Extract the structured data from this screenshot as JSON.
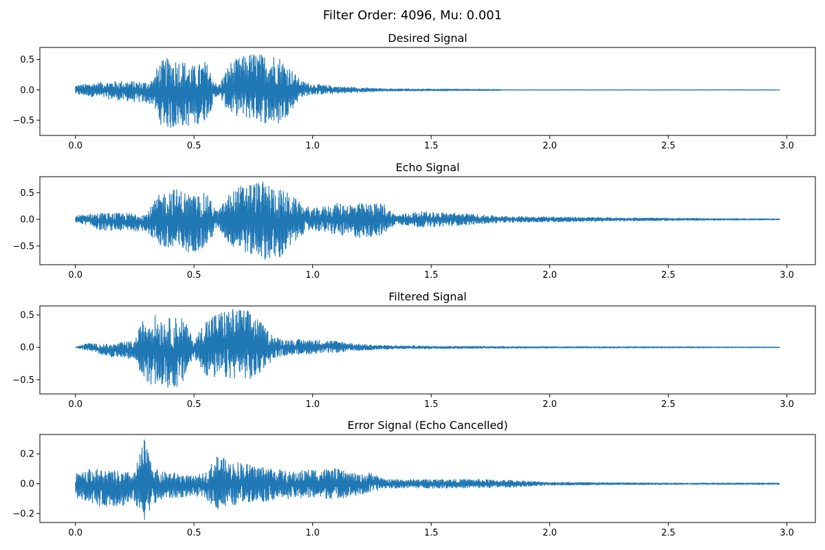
{
  "figure": {
    "title": "Filter Order: 4096, Mu: 0.001"
  },
  "style": {
    "line_color": "#1f77b4",
    "axes_color": "#000000"
  },
  "chart_data": [
    {
      "type": "line",
      "title": "Desired Signal",
      "xlim": [
        -0.15,
        3.12
      ],
      "ylim": [
        -0.75,
        0.7
      ],
      "xticks": [
        0.0,
        0.5,
        1.0,
        1.5,
        2.0,
        2.5,
        3.0
      ],
      "xtick_labels": [
        "0.0",
        "0.5",
        "1.0",
        "1.5",
        "2.0",
        "2.5",
        "3.0"
      ],
      "yticks": [
        -0.5,
        0.0,
        0.5
      ],
      "ytick_labels": [
        "−0.5",
        "0.0",
        "0.5"
      ],
      "grid": false,
      "series": [
        {
          "values": [],
          "envelope": {
            "x": [
              0.0,
              0.05,
              0.1,
              0.2,
              0.3,
              0.33,
              0.35,
              0.4,
              0.45,
              0.5,
              0.55,
              0.6,
              0.65,
              0.7,
              0.75,
              0.8,
              0.85,
              0.9,
              0.95,
              1.0,
              1.1,
              1.2,
              1.3,
              1.5,
              1.78,
              1.8,
              2.0,
              2.5,
              2.97
            ],
            "upper": [
              0.08,
              0.1,
              0.13,
              0.15,
              0.14,
              0.2,
              0.45,
              0.55,
              0.5,
              0.4,
              0.48,
              0.05,
              0.45,
              0.55,
              0.62,
              0.58,
              0.6,
              0.4,
              0.15,
              0.1,
              0.06,
              0.04,
              0.02,
              0.015,
              0.01,
              0.003,
              0.003,
              0.003,
              0.003
            ],
            "lower": [
              -0.08,
              -0.1,
              -0.13,
              -0.18,
              -0.22,
              -0.25,
              -0.55,
              -0.65,
              -0.6,
              -0.6,
              -0.5,
              -0.08,
              -0.4,
              -0.45,
              -0.5,
              -0.55,
              -0.6,
              -0.4,
              -0.12,
              -0.08,
              -0.06,
              -0.04,
              -0.02,
              -0.015,
              -0.01,
              -0.003,
              -0.003,
              -0.003,
              -0.003
            ]
          }
        }
      ]
    },
    {
      "type": "line",
      "title": "Echo Signal",
      "xlim": [
        -0.15,
        3.12
      ],
      "ylim": [
        -0.85,
        0.8
      ],
      "xticks": [
        0.0,
        0.5,
        1.0,
        1.5,
        2.0,
        2.5,
        3.0
      ],
      "xtick_labels": [
        "0.0",
        "0.5",
        "1.0",
        "1.5",
        "2.0",
        "2.5",
        "3.0"
      ],
      "yticks": [
        -0.5,
        0.0,
        0.5
      ],
      "ytick_labels": [
        "−0.5",
        "0.0",
        "0.5"
      ],
      "grid": false,
      "series": [
        {
          "values": [],
          "envelope": {
            "x": [
              0.0,
              0.05,
              0.1,
              0.2,
              0.3,
              0.35,
              0.4,
              0.45,
              0.5,
              0.55,
              0.6,
              0.65,
              0.7,
              0.75,
              0.8,
              0.85,
              0.9,
              0.95,
              1.0,
              1.05,
              1.1,
              1.2,
              1.3,
              1.35,
              1.45,
              1.6,
              1.8,
              2.0,
              2.3,
              2.6,
              2.97
            ],
            "upper": [
              0.07,
              0.1,
              0.12,
              0.12,
              0.12,
              0.45,
              0.6,
              0.55,
              0.45,
              0.5,
              0.15,
              0.5,
              0.65,
              0.72,
              0.7,
              0.6,
              0.5,
              0.3,
              0.2,
              0.25,
              0.3,
              0.3,
              0.3,
              0.08,
              0.15,
              0.12,
              0.06,
              0.05,
              0.03,
              0.02,
              0.01
            ],
            "lower": [
              -0.07,
              -0.1,
              -0.2,
              -0.22,
              -0.22,
              -0.5,
              -0.65,
              -0.65,
              -0.6,
              -0.55,
              -0.15,
              -0.5,
              -0.6,
              -0.7,
              -0.75,
              -0.8,
              -0.6,
              -0.3,
              -0.2,
              -0.25,
              -0.3,
              -0.35,
              -0.3,
              -0.08,
              -0.15,
              -0.12,
              -0.06,
              -0.05,
              -0.03,
              -0.02,
              -0.01
            ]
          }
        }
      ]
    },
    {
      "type": "line",
      "title": "Filtered Signal",
      "xlim": [
        -0.15,
        3.12
      ],
      "ylim": [
        -0.72,
        0.64
      ],
      "xticks": [
        0.0,
        0.5,
        1.0,
        1.5,
        2.0,
        2.5,
        3.0
      ],
      "xtick_labels": [
        "0.0",
        "0.5",
        "1.0",
        "1.5",
        "2.0",
        "2.5",
        "3.0"
      ],
      "yticks": [
        -0.5,
        0.0,
        0.5
      ],
      "ytick_labels": [
        "−0.5",
        "0.0",
        "0.5"
      ],
      "grid": false,
      "series": [
        {
          "values": [],
          "envelope": {
            "x": [
              0.0,
              0.05,
              0.1,
              0.15,
              0.2,
              0.25,
              0.28,
              0.3,
              0.35,
              0.4,
              0.45,
              0.5,
              0.55,
              0.6,
              0.65,
              0.7,
              0.75,
              0.8,
              0.85,
              0.9,
              1.0,
              1.1,
              1.2,
              1.3,
              1.5,
              2.0,
              2.5,
              2.97
            ],
            "upper": [
              0.0,
              0.07,
              0.05,
              0.05,
              0.08,
              0.1,
              0.4,
              0.5,
              0.5,
              0.45,
              0.5,
              0.1,
              0.45,
              0.55,
              0.6,
              0.6,
              0.55,
              0.3,
              0.15,
              0.12,
              0.12,
              0.1,
              0.05,
              0.03,
              0.02,
              0.01,
              0.01,
              0.005
            ],
            "lower": [
              0.0,
              -0.05,
              -0.1,
              -0.15,
              -0.15,
              -0.2,
              -0.45,
              -0.55,
              -0.6,
              -0.65,
              -0.6,
              -0.15,
              -0.45,
              -0.5,
              -0.5,
              -0.45,
              -0.55,
              -0.3,
              -0.15,
              -0.12,
              -0.1,
              -0.08,
              -0.05,
              -0.03,
              -0.02,
              -0.01,
              -0.01,
              -0.005
            ]
          }
        }
      ]
    },
    {
      "type": "line",
      "title": "Error Signal (Echo Cancelled)",
      "xlim": [
        -0.15,
        3.12
      ],
      "ylim": [
        -0.26,
        0.33
      ],
      "xticks": [
        0.0,
        0.5,
        1.0,
        1.5,
        2.0,
        2.5,
        3.0
      ],
      "xtick_labels": [
        "0.0",
        "0.5",
        "1.0",
        "1.5",
        "2.0",
        "2.5",
        "3.0"
      ],
      "yticks": [
        -0.2,
        0.0,
        0.2
      ],
      "ytick_labels": [
        "−0.2",
        "0.0",
        "0.2"
      ],
      "grid": false,
      "series": [
        {
          "values": [],
          "envelope": {
            "x": [
              0.0,
              0.02,
              0.05,
              0.1,
              0.2,
              0.25,
              0.27,
              0.29,
              0.31,
              0.35,
              0.4,
              0.5,
              0.55,
              0.58,
              0.6,
              0.65,
              0.7,
              0.75,
              0.8,
              0.85,
              0.9,
              1.0,
              1.1,
              1.2,
              1.25,
              1.3,
              1.5,
              1.7,
              1.9,
              2.0,
              2.5,
              2.97
            ],
            "upper": [
              0.08,
              0.1,
              0.1,
              0.1,
              0.08,
              0.08,
              0.2,
              0.3,
              0.2,
              0.08,
              0.08,
              0.05,
              0.08,
              0.15,
              0.2,
              0.15,
              0.15,
              0.12,
              0.12,
              0.1,
              0.08,
              0.1,
              0.1,
              0.06,
              0.08,
              0.03,
              0.03,
              0.03,
              0.02,
              0.01,
              0.005,
              0.005
            ],
            "lower": [
              -0.1,
              -0.1,
              -0.12,
              -0.15,
              -0.15,
              -0.12,
              -0.22,
              -0.25,
              -0.18,
              -0.12,
              -0.1,
              -0.08,
              -0.1,
              -0.15,
              -0.18,
              -0.16,
              -0.13,
              -0.12,
              -0.12,
              -0.1,
              -0.1,
              -0.1,
              -0.1,
              -0.08,
              -0.06,
              -0.03,
              -0.03,
              -0.03,
              -0.02,
              -0.01,
              -0.005,
              -0.005
            ]
          }
        }
      ]
    }
  ]
}
